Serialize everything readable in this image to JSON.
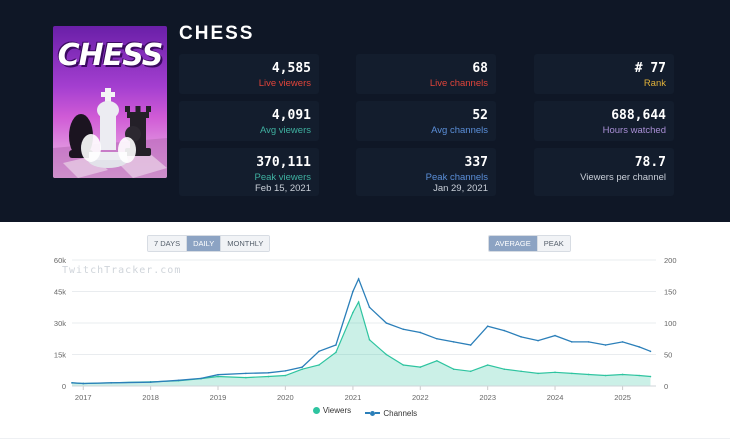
{
  "game": {
    "title": "CHESS",
    "cover_text": "CHESS"
  },
  "stats": {
    "live_viewers": {
      "value": "4,585",
      "label": "Live viewers"
    },
    "live_channels": {
      "value": "68",
      "label": "Live channels"
    },
    "rank": {
      "value": "# 77",
      "label": "Rank"
    },
    "avg_viewers": {
      "value": "4,091",
      "label": "Avg viewers"
    },
    "avg_channels": {
      "value": "52",
      "label": "Avg channels"
    },
    "hours_watched": {
      "value": "688,644",
      "label": "Hours watched"
    },
    "peak_viewers": {
      "value": "370,111",
      "label": "Peak viewers",
      "date": "Feb 15, 2021"
    },
    "peak_channels": {
      "value": "337",
      "label": "Peak channels",
      "date": "Jan 29, 2021"
    },
    "viewers_per_channel": {
      "value": "78.7",
      "label": "Viewers per channel"
    }
  },
  "range_buttons": [
    "7 DAYS",
    "DAILY",
    "MONTHLY"
  ],
  "range_active": "DAILY",
  "mode_buttons": [
    "AVERAGE",
    "PEAK"
  ],
  "mode_active": "AVERAGE",
  "watermark": "TwitchTracker.com",
  "colors": {
    "viewers": "#2ec4a0",
    "channels": "#2b7fb9",
    "header_bg": "#0f1726"
  },
  "chart_data": {
    "type": "line",
    "x": [
      "2016-11",
      "2017-01",
      "2017-06",
      "2018-01",
      "2018-06",
      "2018-10",
      "2019-01",
      "2019-06",
      "2019-10",
      "2020-01",
      "2020-04",
      "2020-07",
      "2020-10",
      "2021-01",
      "2021-02",
      "2021-04",
      "2021-07",
      "2021-10",
      "2022-01",
      "2022-04",
      "2022-07",
      "2022-10",
      "2023-01",
      "2023-04",
      "2023-07",
      "2023-10",
      "2024-01",
      "2024-04",
      "2024-07",
      "2024-10",
      "2025-01",
      "2025-04",
      "2025-06"
    ],
    "series": [
      {
        "name": "Viewers",
        "axis": "left",
        "values": [
          1500,
          1200,
          1500,
          2000,
          2500,
          3500,
          4500,
          4000,
          4500,
          5000,
          8000,
          10000,
          16000,
          35000,
          40000,
          22000,
          15000,
          10000,
          9000,
          12000,
          8000,
          7000,
          10000,
          8000,
          7000,
          6000,
          6500,
          6000,
          5500,
          5000,
          5500,
          5000,
          4500
        ]
      },
      {
        "name": "Channels",
        "axis": "right",
        "values": [
          5,
          4,
          5,
          6,
          9,
          12,
          18,
          20,
          21,
          24,
          30,
          55,
          65,
          150,
          170,
          125,
          100,
          90,
          85,
          75,
          70,
          65,
          95,
          88,
          78,
          72,
          80,
          70,
          70,
          65,
          70,
          62,
          55
        ]
      }
    ],
    "left_axis": {
      "ticks": [
        "0",
        "15k",
        "30k",
        "45k",
        "60k"
      ],
      "range": [
        0,
        60000
      ]
    },
    "right_axis": {
      "ticks": [
        "0",
        "50",
        "100",
        "150",
        "200"
      ],
      "range": [
        0,
        200
      ]
    },
    "x_ticks": [
      "2017",
      "2018",
      "2019",
      "2020",
      "2021",
      "2022",
      "2023",
      "2024",
      "2025"
    ]
  }
}
